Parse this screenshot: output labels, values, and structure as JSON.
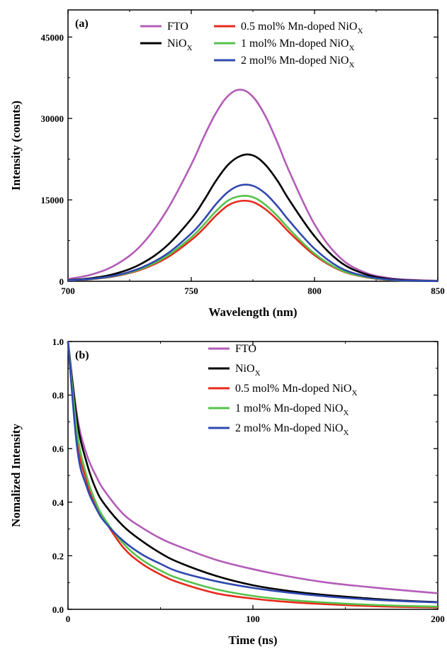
{
  "chart_data": [
    {
      "type": "line",
      "panel_label": "(a)",
      "xlabel": "Wavelength (nm)",
      "ylabel": "Intensity (counts)",
      "xlim": [
        700,
        850
      ],
      "ylim": [
        0,
        50000
      ],
      "xticks": [
        700,
        750,
        800,
        850
      ],
      "yticks": [
        0,
        15000,
        30000,
        45000
      ],
      "grid": false,
      "legend_position": "top-right",
      "series": [
        {
          "name": "FTO",
          "name_sub": "",
          "color": "#b35cb8",
          "x": [
            700,
            710,
            720,
            730,
            740,
            750,
            755,
            760,
            765,
            770,
            775,
            780,
            785,
            790,
            800,
            810,
            820,
            830,
            840,
            850
          ],
          "y": [
            400,
            1300,
            3200,
            6800,
            13000,
            21500,
            26500,
            31000,
            34200,
            35300,
            34000,
            30500,
            25500,
            20000,
            10500,
            4500,
            1700,
            600,
            250,
            100
          ]
        },
        {
          "name": "NiO",
          "name_sub": "X",
          "color": "#000000",
          "x": [
            700,
            710,
            720,
            730,
            740,
            750,
            755,
            760,
            765,
            770,
            775,
            780,
            785,
            790,
            800,
            810,
            820,
            830,
            840,
            850
          ],
          "y": [
            200,
            600,
            1500,
            3300,
            6500,
            11500,
            14800,
            18500,
            21500,
            23100,
            23200,
            21500,
            18500,
            14800,
            8300,
            3700,
            1400,
            450,
            150,
            50
          ]
        },
        {
          "name": "0.5 mol% Mn-doped NiO",
          "name_sub": "X",
          "color": "#e8291c",
          "x": [
            700,
            710,
            720,
            730,
            740,
            750,
            755,
            760,
            765,
            770,
            775,
            780,
            785,
            790,
            800,
            810,
            820,
            830,
            840,
            850
          ],
          "y": [
            150,
            400,
            1000,
            2200,
            4300,
            7600,
            9700,
            12100,
            14000,
            14800,
            14600,
            13300,
            11300,
            8900,
            4800,
            2100,
            800,
            250,
            80,
            30
          ]
        },
        {
          "name": "1 mol% Mn-doped NiO",
          "name_sub": "X",
          "color": "#55c24a",
          "x": [
            700,
            710,
            720,
            730,
            740,
            750,
            755,
            760,
            765,
            770,
            775,
            780,
            785,
            790,
            800,
            810,
            820,
            830,
            840,
            850
          ],
          "y": [
            160,
            430,
            1060,
            2350,
            4600,
            8100,
            10400,
            12900,
            14900,
            15700,
            15500,
            14100,
            12000,
            9500,
            5100,
            2200,
            850,
            270,
            90,
            30
          ]
        },
        {
          "name": "2 mol% Mn-doped NiO",
          "name_sub": "X",
          "color": "#3048b0",
          "x": [
            700,
            710,
            720,
            730,
            740,
            750,
            755,
            760,
            765,
            770,
            775,
            780,
            785,
            790,
            800,
            810,
            820,
            830,
            840,
            850
          ],
          "y": [
            170,
            470,
            1150,
            2550,
            5000,
            8800,
            11300,
            14200,
            16500,
            17700,
            17600,
            16200,
            13800,
            11000,
            6000,
            2600,
            1000,
            320,
            100,
            35
          ]
        }
      ]
    },
    {
      "type": "line",
      "panel_label": "(b)",
      "xlabel": "Time (ns)",
      "ylabel": "Nomalized Intensity",
      "xlim": [
        0,
        200
      ],
      "ylim": [
        0,
        1.0
      ],
      "xticks": [
        0,
        100,
        200
      ],
      "yticks": [
        0.0,
        0.2,
        0.4,
        0.6,
        0.8,
        1.0
      ],
      "grid": false,
      "legend_position": "top-right",
      "series": [
        {
          "name": "FTO",
          "name_sub": "",
          "color": "#b35cb8",
          "x": [
            0,
            5,
            10,
            15,
            20,
            30,
            40,
            50,
            60,
            80,
            100,
            120,
            140,
            160,
            180,
            200
          ],
          "y": [
            1.0,
            0.72,
            0.58,
            0.5,
            0.44,
            0.355,
            0.305,
            0.265,
            0.235,
            0.185,
            0.15,
            0.122,
            0.1,
            0.085,
            0.072,
            0.06
          ]
        },
        {
          "name": "NiO",
          "name_sub": "X",
          "color": "#000000",
          "x": [
            0,
            5,
            10,
            15,
            20,
            30,
            40,
            50,
            60,
            80,
            100,
            120,
            140,
            160,
            180,
            200
          ],
          "y": [
            1.0,
            0.7,
            0.55,
            0.45,
            0.39,
            0.31,
            0.255,
            0.21,
            0.175,
            0.125,
            0.09,
            0.068,
            0.053,
            0.042,
            0.033,
            0.027
          ]
        },
        {
          "name": "0.5 mol% Mn-doped NiO",
          "name_sub": "X",
          "color": "#e8291c",
          "x": [
            0,
            5,
            10,
            15,
            20,
            30,
            40,
            50,
            60,
            80,
            100,
            120,
            140,
            160,
            180,
            200
          ],
          "y": [
            1.0,
            0.63,
            0.48,
            0.39,
            0.33,
            0.23,
            0.17,
            0.13,
            0.1,
            0.06,
            0.04,
            0.027,
            0.019,
            0.013,
            0.009,
            0.007
          ]
        },
        {
          "name": "1 mol% Mn-doped NiO",
          "name_sub": "X",
          "color": "#55c24a",
          "x": [
            0,
            5,
            10,
            15,
            20,
            30,
            40,
            50,
            60,
            80,
            100,
            120,
            140,
            160,
            180,
            200
          ],
          "y": [
            1.0,
            0.66,
            0.5,
            0.4,
            0.335,
            0.245,
            0.185,
            0.145,
            0.115,
            0.075,
            0.05,
            0.035,
            0.025,
            0.018,
            0.013,
            0.01
          ]
        },
        {
          "name": "2 mol% Mn-doped NiO",
          "name_sub": "X",
          "color": "#3048b0",
          "x": [
            0,
            5,
            10,
            15,
            20,
            30,
            40,
            50,
            60,
            80,
            100,
            120,
            140,
            160,
            180,
            200
          ],
          "y": [
            1.0,
            0.6,
            0.46,
            0.38,
            0.325,
            0.255,
            0.205,
            0.17,
            0.14,
            0.105,
            0.08,
            0.062,
            0.048,
            0.038,
            0.031,
            0.026
          ]
        }
      ]
    }
  ]
}
